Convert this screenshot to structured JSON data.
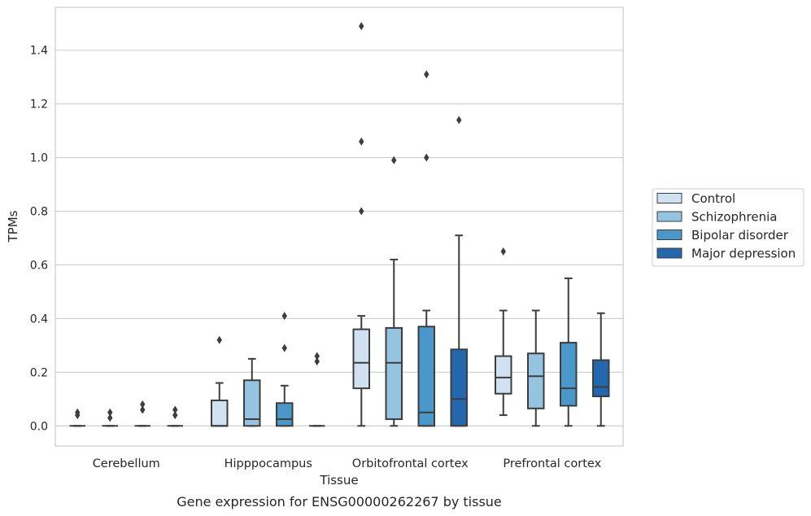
{
  "chart_data": {
    "type": "box",
    "xlabel": "Tissue",
    "ylabel": "TPMs",
    "caption": "Gene expression for ENSG00000262267 by tissue",
    "ylim": [
      -0.075,
      1.56
    ],
    "yticks": [
      0.0,
      0.2,
      0.4,
      0.6,
      0.8,
      1.0,
      1.2,
      1.4
    ],
    "grid": "horizontal",
    "legend_position": "right",
    "categories": [
      "Cerebellum",
      "Hipppocampus",
      "Orbitofrontal cortex",
      "Prefrontal cortex"
    ],
    "series": [
      {
        "name": "Control",
        "color": "#d0e1f2",
        "boxes": [
          {
            "whislo": 0.0,
            "q1": 0.0,
            "med": 0.0,
            "q3": 0.0,
            "whishi": 0.0,
            "fliers": [
              0.04,
              0.05
            ]
          },
          {
            "whislo": 0.0,
            "q1": 0.0,
            "med": 0.0,
            "q3": 0.095,
            "whishi": 0.16,
            "fliers": [
              0.32
            ]
          },
          {
            "whislo": 0.0,
            "q1": 0.14,
            "med": 0.235,
            "q3": 0.36,
            "whishi": 0.41,
            "fliers": [
              0.8,
              1.06,
              1.49
            ]
          },
          {
            "whislo": 0.04,
            "q1": 0.12,
            "med": 0.18,
            "q3": 0.26,
            "whishi": 0.43,
            "fliers": [
              0.65
            ]
          }
        ]
      },
      {
        "name": "Schizophrenia",
        "color": "#94c4df",
        "boxes": [
          {
            "whislo": 0.0,
            "q1": 0.0,
            "med": 0.0,
            "q3": 0.0,
            "whishi": 0.0,
            "fliers": [
              0.03,
              0.05
            ]
          },
          {
            "whislo": 0.0,
            "q1": 0.0,
            "med": 0.025,
            "q3": 0.17,
            "whishi": 0.25,
            "fliers": []
          },
          {
            "whislo": 0.0,
            "q1": 0.025,
            "med": 0.235,
            "q3": 0.365,
            "whishi": 0.62,
            "fliers": [
              0.99
            ]
          },
          {
            "whislo": 0.0,
            "q1": 0.065,
            "med": 0.185,
            "q3": 0.27,
            "whishi": 0.43,
            "fliers": []
          }
        ]
      },
      {
        "name": "Bipolar disorder",
        "color": "#4a98c9",
        "boxes": [
          {
            "whislo": 0.0,
            "q1": 0.0,
            "med": 0.0,
            "q3": 0.0,
            "whishi": 0.0,
            "fliers": [
              0.06,
              0.08
            ]
          },
          {
            "whislo": 0.0,
            "q1": 0.0,
            "med": 0.025,
            "q3": 0.085,
            "whishi": 0.15,
            "fliers": [
              0.29,
              0.41
            ]
          },
          {
            "whislo": 0.0,
            "q1": 0.0,
            "med": 0.05,
            "q3": 0.37,
            "whishi": 0.43,
            "fliers": [
              1.0,
              1.31
            ]
          },
          {
            "whislo": 0.0,
            "q1": 0.075,
            "med": 0.14,
            "q3": 0.31,
            "whishi": 0.55,
            "fliers": []
          }
        ]
      },
      {
        "name": "Major depression",
        "color": "#2367ac",
        "boxes": [
          {
            "whislo": 0.0,
            "q1": 0.0,
            "med": 0.0,
            "q3": 0.0,
            "whishi": 0.0,
            "fliers": [
              0.04,
              0.06
            ]
          },
          {
            "whislo": 0.0,
            "q1": 0.0,
            "med": 0.0,
            "q3": 0.0,
            "whishi": 0.0,
            "fliers": [
              0.24,
              0.26
            ]
          },
          {
            "whislo": 0.0,
            "q1": 0.0,
            "med": 0.1,
            "q3": 0.285,
            "whishi": 0.71,
            "fliers": [
              1.14
            ]
          },
          {
            "whislo": 0.0,
            "q1": 0.11,
            "med": 0.145,
            "q3": 0.245,
            "whishi": 0.42,
            "fliers": []
          }
        ]
      }
    ]
  }
}
